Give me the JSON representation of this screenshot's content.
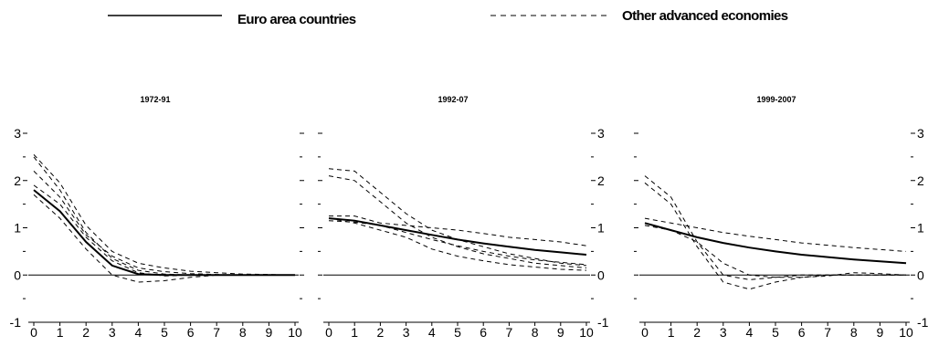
{
  "legend": {
    "solid_label": "Euro area countries",
    "dashed_label": "Other advanced economies"
  },
  "chart_data": [
    {
      "type": "line",
      "title": "1972-91",
      "x": [
        0,
        1,
        2,
        3,
        4,
        5,
        6,
        7,
        8,
        9,
        10
      ],
      "ylim": [
        -1,
        3
      ],
      "y_ticks": [
        -1,
        0,
        1,
        2,
        3
      ],
      "y_tick_labels_left": true,
      "y_tick_labels_right": false,
      "series": [
        {
          "style": "solid",
          "values": [
            1.8,
            1.35,
            0.7,
            0.2,
            0.02,
            0.0,
            0.0,
            0.0,
            0.0,
            0.0,
            0.0
          ]
        },
        {
          "style": "dashed",
          "values": [
            2.5,
            1.8,
            0.9,
            0.35,
            0.1,
            0.02,
            0.0,
            0.0,
            0.0,
            0.0,
            0.0
          ]
        },
        {
          "style": "dashed",
          "values": [
            2.55,
            1.95,
            1.05,
            0.5,
            0.25,
            0.15,
            0.08,
            0.05,
            0.02,
            0.01,
            0.0
          ]
        },
        {
          "style": "dashed",
          "values": [
            1.9,
            1.5,
            0.8,
            0.3,
            0.05,
            -0.02,
            0.0,
            0.0,
            0.0,
            0.0,
            0.0
          ]
        },
        {
          "style": "dashed",
          "values": [
            1.7,
            1.2,
            0.55,
            0.0,
            -0.15,
            -0.12,
            -0.05,
            0.0,
            0.0,
            0.0,
            0.0
          ]
        },
        {
          "style": "dashed",
          "values": [
            2.2,
            1.65,
            0.85,
            0.4,
            0.15,
            0.07,
            0.03,
            0.01,
            0.0,
            0.0,
            0.0
          ]
        }
      ]
    },
    {
      "type": "line",
      "title": "1992-07",
      "x": [
        0,
        1,
        2,
        3,
        4,
        5,
        6,
        7,
        8,
        9,
        10
      ],
      "ylim": [
        -1,
        3
      ],
      "y_ticks": [
        -1,
        0,
        1,
        2,
        3
      ],
      "y_tick_labels_left": false,
      "y_tick_labels_right": true,
      "series": [
        {
          "style": "solid",
          "values": [
            1.2,
            1.15,
            1.05,
            0.95,
            0.85,
            0.75,
            0.67,
            0.6,
            0.53,
            0.48,
            0.43
          ]
        },
        {
          "style": "dashed",
          "values": [
            2.25,
            2.2,
            1.75,
            1.3,
            0.95,
            0.75,
            0.6,
            0.45,
            0.35,
            0.25,
            0.2
          ]
        },
        {
          "style": "dashed",
          "values": [
            2.1,
            2.0,
            1.55,
            1.1,
            0.8,
            0.6,
            0.45,
            0.35,
            0.25,
            0.2,
            0.15
          ]
        },
        {
          "style": "dashed",
          "values": [
            1.25,
            1.25,
            1.1,
            1.05,
            1.0,
            0.95,
            0.88,
            0.8,
            0.75,
            0.7,
            0.62
          ]
        },
        {
          "style": "dashed",
          "values": [
            1.2,
            1.1,
            0.95,
            0.8,
            0.55,
            0.4,
            0.3,
            0.22,
            0.17,
            0.12,
            0.1
          ]
        },
        {
          "style": "dashed",
          "values": [
            1.15,
            1.12,
            1.05,
            0.9,
            0.75,
            0.62,
            0.5,
            0.4,
            0.32,
            0.27,
            0.22
          ]
        }
      ]
    },
    {
      "type": "line",
      "title": "1999-2007",
      "x": [
        0,
        1,
        2,
        3,
        4,
        5,
        6,
        7,
        8,
        9,
        10
      ],
      "ylim": [
        -1,
        3
      ],
      "y_ticks": [
        -1,
        0,
        1,
        2,
        3
      ],
      "y_tick_labels_left": false,
      "y_tick_labels_right": true,
      "series": [
        {
          "style": "solid",
          "values": [
            1.1,
            0.95,
            0.8,
            0.68,
            0.58,
            0.5,
            0.43,
            0.38,
            0.33,
            0.29,
            0.25
          ]
        },
        {
          "style": "dashed",
          "values": [
            2.1,
            1.65,
            0.7,
            0.0,
            -0.1,
            -0.05,
            0.0,
            0.0,
            0.0,
            0.0,
            0.0
          ]
        },
        {
          "style": "dashed",
          "values": [
            1.95,
            1.5,
            0.6,
            -0.15,
            -0.3,
            -0.15,
            -0.05,
            0.0,
            0.0,
            0.0,
            0.0
          ]
        },
        {
          "style": "dashed",
          "values": [
            1.2,
            1.1,
            1.0,
            0.9,
            0.82,
            0.75,
            0.68,
            0.63,
            0.58,
            0.54,
            0.5
          ]
        },
        {
          "style": "dashed",
          "values": [
            1.05,
            0.95,
            0.7,
            0.25,
            0.0,
            -0.05,
            -0.05,
            -0.02,
            0.05,
            0.03,
            0.0
          ]
        }
      ]
    }
  ]
}
